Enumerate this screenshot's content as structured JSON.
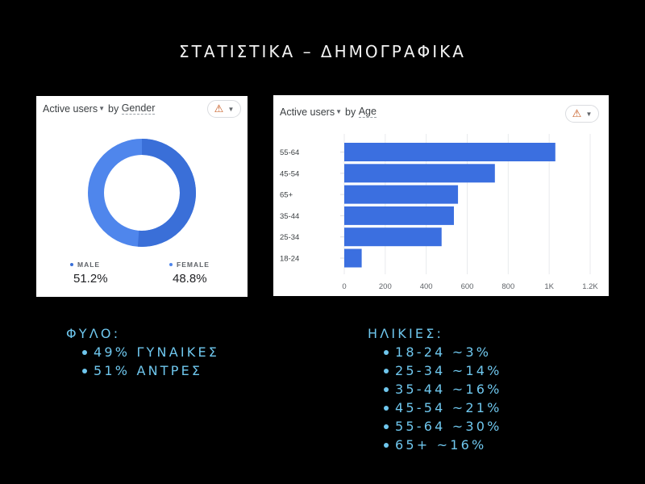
{
  "slide": {
    "title": "ΣΤΑΤΙΣΤΙΚΑ – ΔΗΜΟΓΡΑΦΙΚΑ"
  },
  "gender_card": {
    "metric_label": "Active users",
    "by_label": "by",
    "dimension_label": "Gender",
    "warning_icon": "warning-triangle-icon",
    "legend": [
      {
        "label": "MALE",
        "value": "51.2%",
        "color": "#3a6fd8"
      },
      {
        "label": "FEMALE",
        "value": "48.8%",
        "color": "#4f86ec"
      }
    ]
  },
  "age_card": {
    "metric_label": "Active users",
    "by_label": "by",
    "dimension_label": "Age",
    "warning_icon": "warning-triangle-icon",
    "bar_color": "#3b6fe0"
  },
  "notes": {
    "gender": {
      "heading": "ΦΥΛΟ:",
      "items": [
        "49% ΓΥΝΑΙΚΕΣ",
        "51% ΑΝΤΡΕΣ"
      ]
    },
    "age": {
      "heading": "ΗΛΙΚΙΕΣ:",
      "items": [
        "18-24 ~3%",
        "25-34 ~14%",
        "35-44 ~16%",
        "45-54 ~21%",
        "55-64 ~30%",
        "65+ ~16%"
      ]
    }
  },
  "chart_data": [
    {
      "type": "pie",
      "title": "Active users by Gender",
      "categories": [
        "MALE",
        "FEMALE"
      ],
      "values": [
        51.2,
        48.8
      ],
      "unit": "%",
      "donut": true,
      "legend_position": "bottom"
    },
    {
      "type": "bar",
      "orientation": "horizontal",
      "title": "Active users by Age",
      "categories": [
        "55-64",
        "45-54",
        "65+",
        "35-44",
        "25-34",
        "18-24"
      ],
      "values": [
        1030,
        735,
        555,
        535,
        475,
        85
      ],
      "xlabel": "",
      "ylabel": "",
      "xlim": [
        0,
        1200
      ],
      "x_ticks": [
        "0",
        "200",
        "400",
        "600",
        "800",
        "1K",
        "1.2K"
      ],
      "grid": true
    }
  ]
}
